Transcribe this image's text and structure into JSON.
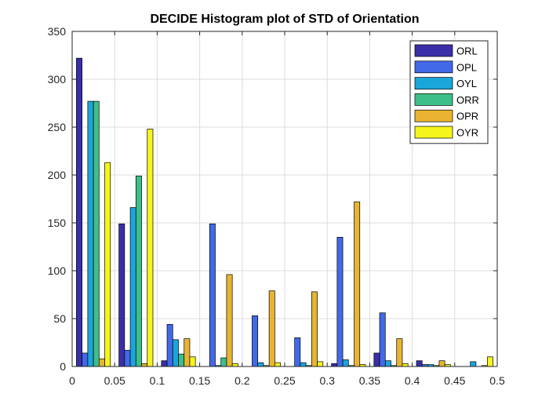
{
  "chart_data": {
    "type": "bar",
    "title": "DECIDE Histogram plot of STD of Orientation",
    "xlabel": "",
    "ylabel": "",
    "xlim": [
      0,
      0.5
    ],
    "ylim": [
      0,
      350
    ],
    "xticks": [
      0,
      0.05,
      0.1,
      0.15,
      0.2,
      0.25,
      0.3,
      0.35,
      0.4,
      0.45,
      0.5
    ],
    "xtick_labels": [
      "0",
      "0.05",
      "0.1",
      "0.15",
      "0.2",
      "0.25",
      "0.3",
      "0.35",
      "0.4",
      "0.45",
      "0.5"
    ],
    "yticks": [
      0,
      50,
      100,
      150,
      200,
      250,
      300,
      350
    ],
    "ytick_labels": [
      "0",
      "50",
      "100",
      "150",
      "200",
      "250",
      "300",
      "350"
    ],
    "grid": true,
    "legend_position": "top-right",
    "bin_centers": [
      0.025,
      0.075,
      0.125,
      0.175,
      0.225,
      0.275,
      0.325,
      0.375,
      0.425,
      0.475
    ],
    "series": [
      {
        "name": "ORL",
        "color": "#3a2fa8",
        "values": [
          322,
          149,
          6,
          0,
          0,
          0,
          3,
          14,
          6,
          0
        ]
      },
      {
        "name": "OPL",
        "color": "#4169e8",
        "values": [
          14,
          17,
          44,
          149,
          53,
          30,
          135,
          56,
          2,
          0
        ]
      },
      {
        "name": "OYL",
        "color": "#1aa5db",
        "values": [
          277,
          166,
          28,
          1,
          4,
          4,
          7,
          6,
          2,
          5
        ]
      },
      {
        "name": "ORR",
        "color": "#3cbf88",
        "values": [
          277,
          199,
          13,
          9,
          1,
          1,
          1,
          1,
          1,
          0
        ]
      },
      {
        "name": "OPR",
        "color": "#e8b431",
        "values": [
          8,
          3,
          29,
          96,
          79,
          78,
          172,
          29,
          6,
          1
        ]
      },
      {
        "name": "OYR",
        "color": "#f5f51d",
        "values": [
          213,
          248,
          10,
          3,
          4,
          5,
          2,
          3,
          2,
          10
        ]
      }
    ]
  }
}
